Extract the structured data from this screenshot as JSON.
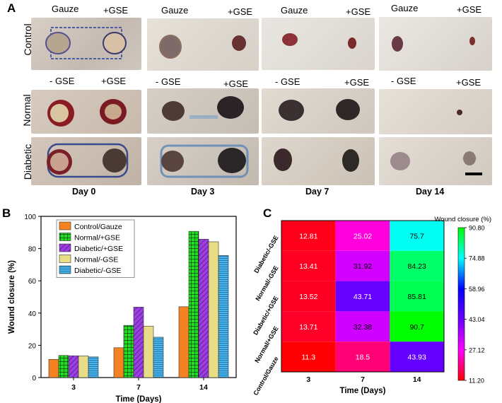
{
  "panel_a": {
    "letter": "A",
    "row_labels": [
      "Control",
      "Normal",
      "Diabetic"
    ],
    "column_headers": [
      {
        "control_left": "Gauze",
        "control_right": "+GSE",
        "lower_left": "- GSE",
        "lower_right": "+GSE"
      },
      {
        "control_left": "Gauze",
        "control_right": "+GSE",
        "lower_left": "- GSE",
        "lower_right": "+GSE"
      },
      {
        "control_left": "Gauze",
        "control_right": "+GSE",
        "lower_left": "- GSE",
        "lower_right": "+GSE"
      },
      {
        "control_left": "Gauze",
        "control_right": "+GSE",
        "lower_left": "- GSE",
        "lower_right": "+GSE"
      }
    ],
    "day_labels": [
      "Day 0",
      "Day 3",
      "Day 7",
      "Day 14"
    ]
  },
  "panel_b": {
    "letter": "B"
  },
  "panel_c": {
    "letter": "C"
  },
  "chart_data": [
    {
      "type": "bar",
      "panel": "B",
      "title": "",
      "xlabel": "Time (Days)",
      "ylabel": "Wound closure (%)",
      "ylim": [
        0,
        100
      ],
      "yticks": [
        "0",
        "20",
        "40",
        "60",
        "80",
        "100"
      ],
      "categories": [
        "3",
        "7",
        "14"
      ],
      "legend_placement": "top-left",
      "series": [
        {
          "name": "Control/Gauze",
          "color": "#f58220",
          "pattern": "solid",
          "values": [
            11.3,
            18.5,
            43.93
          ]
        },
        {
          "name": "Normal/+GSE",
          "color": "#22dd22",
          "pattern": "grid",
          "values": [
            13.71,
            32.38,
            90.7
          ]
        },
        {
          "name": "Diabetic/+GSE",
          "color": "#9b3fe0",
          "pattern": "diagonal",
          "values": [
            13.52,
            43.71,
            85.81
          ]
        },
        {
          "name": "Normal/-GSE",
          "color": "#e8dc86",
          "pattern": "solid",
          "values": [
            13.41,
            31.92,
            84.23
          ]
        },
        {
          "name": "Diabetic/-GSE",
          "color": "#49b5ef",
          "pattern": "horizontal",
          "values": [
            12.81,
            25.02,
            75.7
          ]
        }
      ]
    },
    {
      "type": "heatmap",
      "panel": "C",
      "title": "Wound closure (%)",
      "xlabel": "Time (Days)",
      "x_categories": [
        "3",
        "7",
        "14"
      ],
      "y_categories": [
        "Diabetic/-GSE",
        "Normal/-GSE",
        "Diabetic/+GSE",
        "Normal/+GSE",
        "Control/Gauze"
      ],
      "cell_labels": [
        [
          "12.81",
          "25.02",
          "75.7"
        ],
        [
          "13.41",
          "31.92",
          "84.23"
        ],
        [
          "13.52",
          "43.71",
          "85.81"
        ],
        [
          "13.71",
          "32.38",
          "90.7"
        ],
        [
          "11.3",
          "18.5",
          "43.93"
        ]
      ],
      "values": [
        [
          12.81,
          25.02,
          75.7
        ],
        [
          13.41,
          31.92,
          84.23
        ],
        [
          13.52,
          43.71,
          85.81
        ],
        [
          13.71,
          32.38,
          90.7
        ],
        [
          11.3,
          18.5,
          43.93
        ]
      ],
      "colorbar_title": "Wound closure (%)",
      "colorbar_range": [
        11.2,
        90.8
      ],
      "colorbar_ticks": [
        "90.80",
        "74.88",
        "58.96",
        "43.04",
        "27.12",
        "11.20"
      ],
      "colorscale": [
        "#ff0000",
        "#ff00ff",
        "#6a00ff",
        "#0000ff",
        "#00ffff",
        "#00ff00"
      ]
    }
  ]
}
